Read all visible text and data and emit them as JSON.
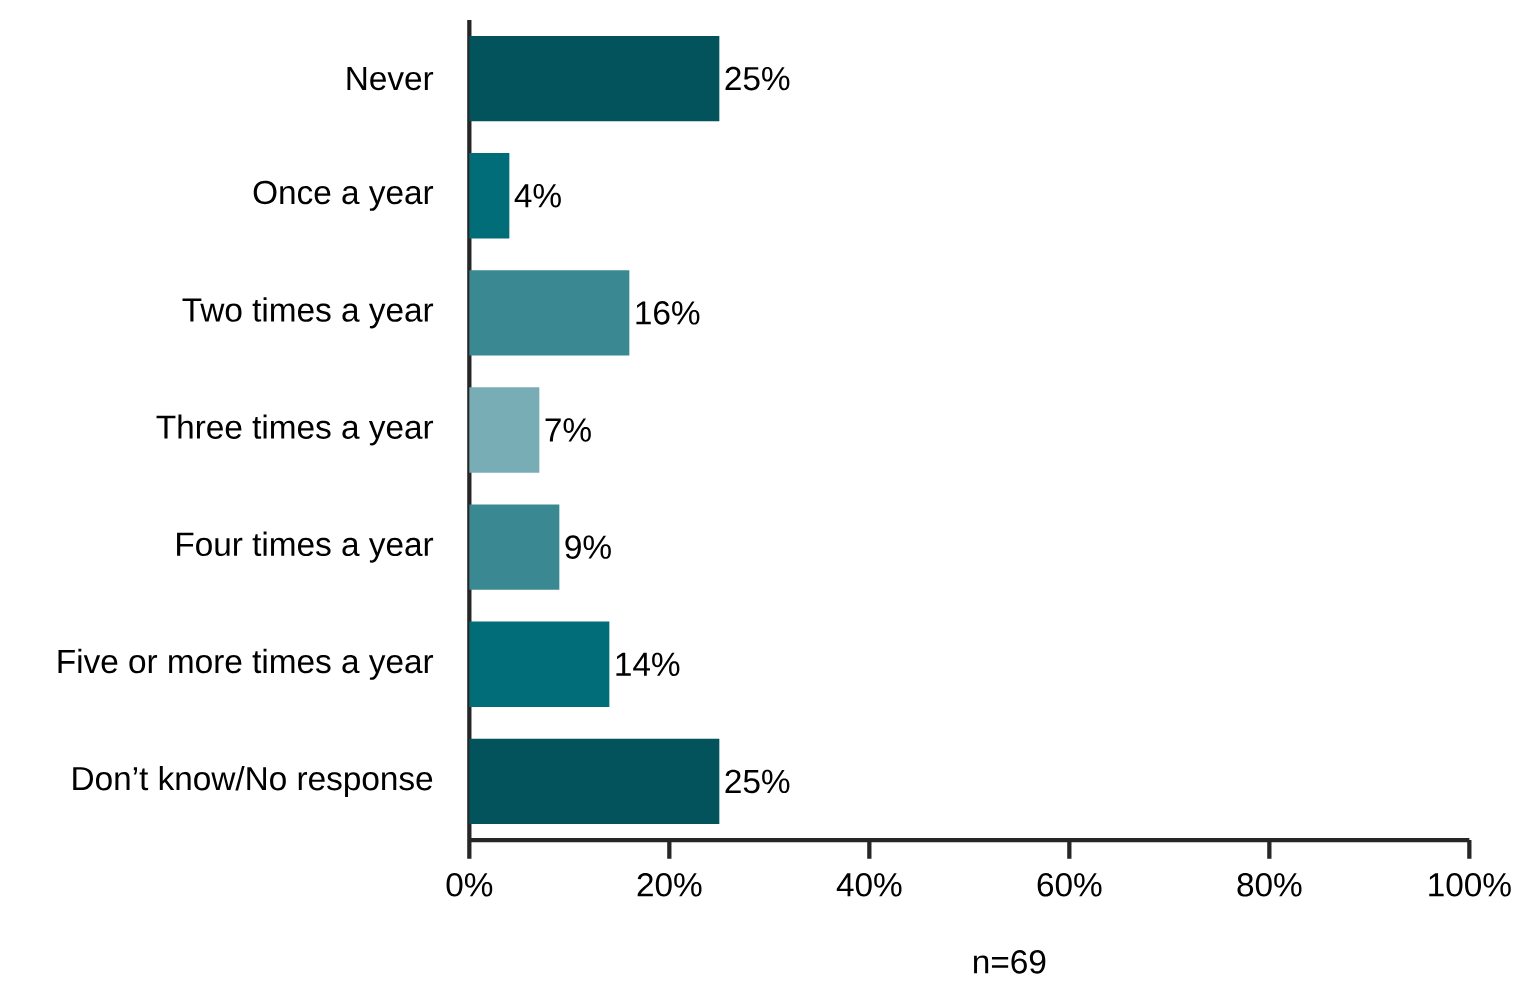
{
  "chart_data": {
    "type": "bar",
    "orientation": "horizontal",
    "categories": [
      "Never",
      "Once a year",
      "Two times a year",
      "Three times a year",
      "Four times a year",
      "Five or more times a year",
      "Don’t know/No response"
    ],
    "values": [
      25,
      4,
      16,
      7,
      9,
      14,
      25
    ],
    "colors": [
      "#02535b",
      "#006d78",
      "#3a8891",
      "#78adb5",
      "#3a8891",
      "#006d78",
      "#02535b"
    ],
    "value_labels": [
      "25%",
      "4%",
      "16%",
      "7%",
      "9%",
      "14%",
      "25%"
    ],
    "xlim": [
      0,
      100
    ],
    "xticks": [
      {
        "value": 0,
        "label": "0%"
      },
      {
        "value": 20,
        "label": "20%"
      },
      {
        "value": 40,
        "label": "40%"
      },
      {
        "value": 60,
        "label": "60%"
      },
      {
        "value": 80,
        "label": "80%"
      },
      {
        "value": 100,
        "label": "100%"
      }
    ],
    "annotations": [
      "n=69"
    ]
  }
}
